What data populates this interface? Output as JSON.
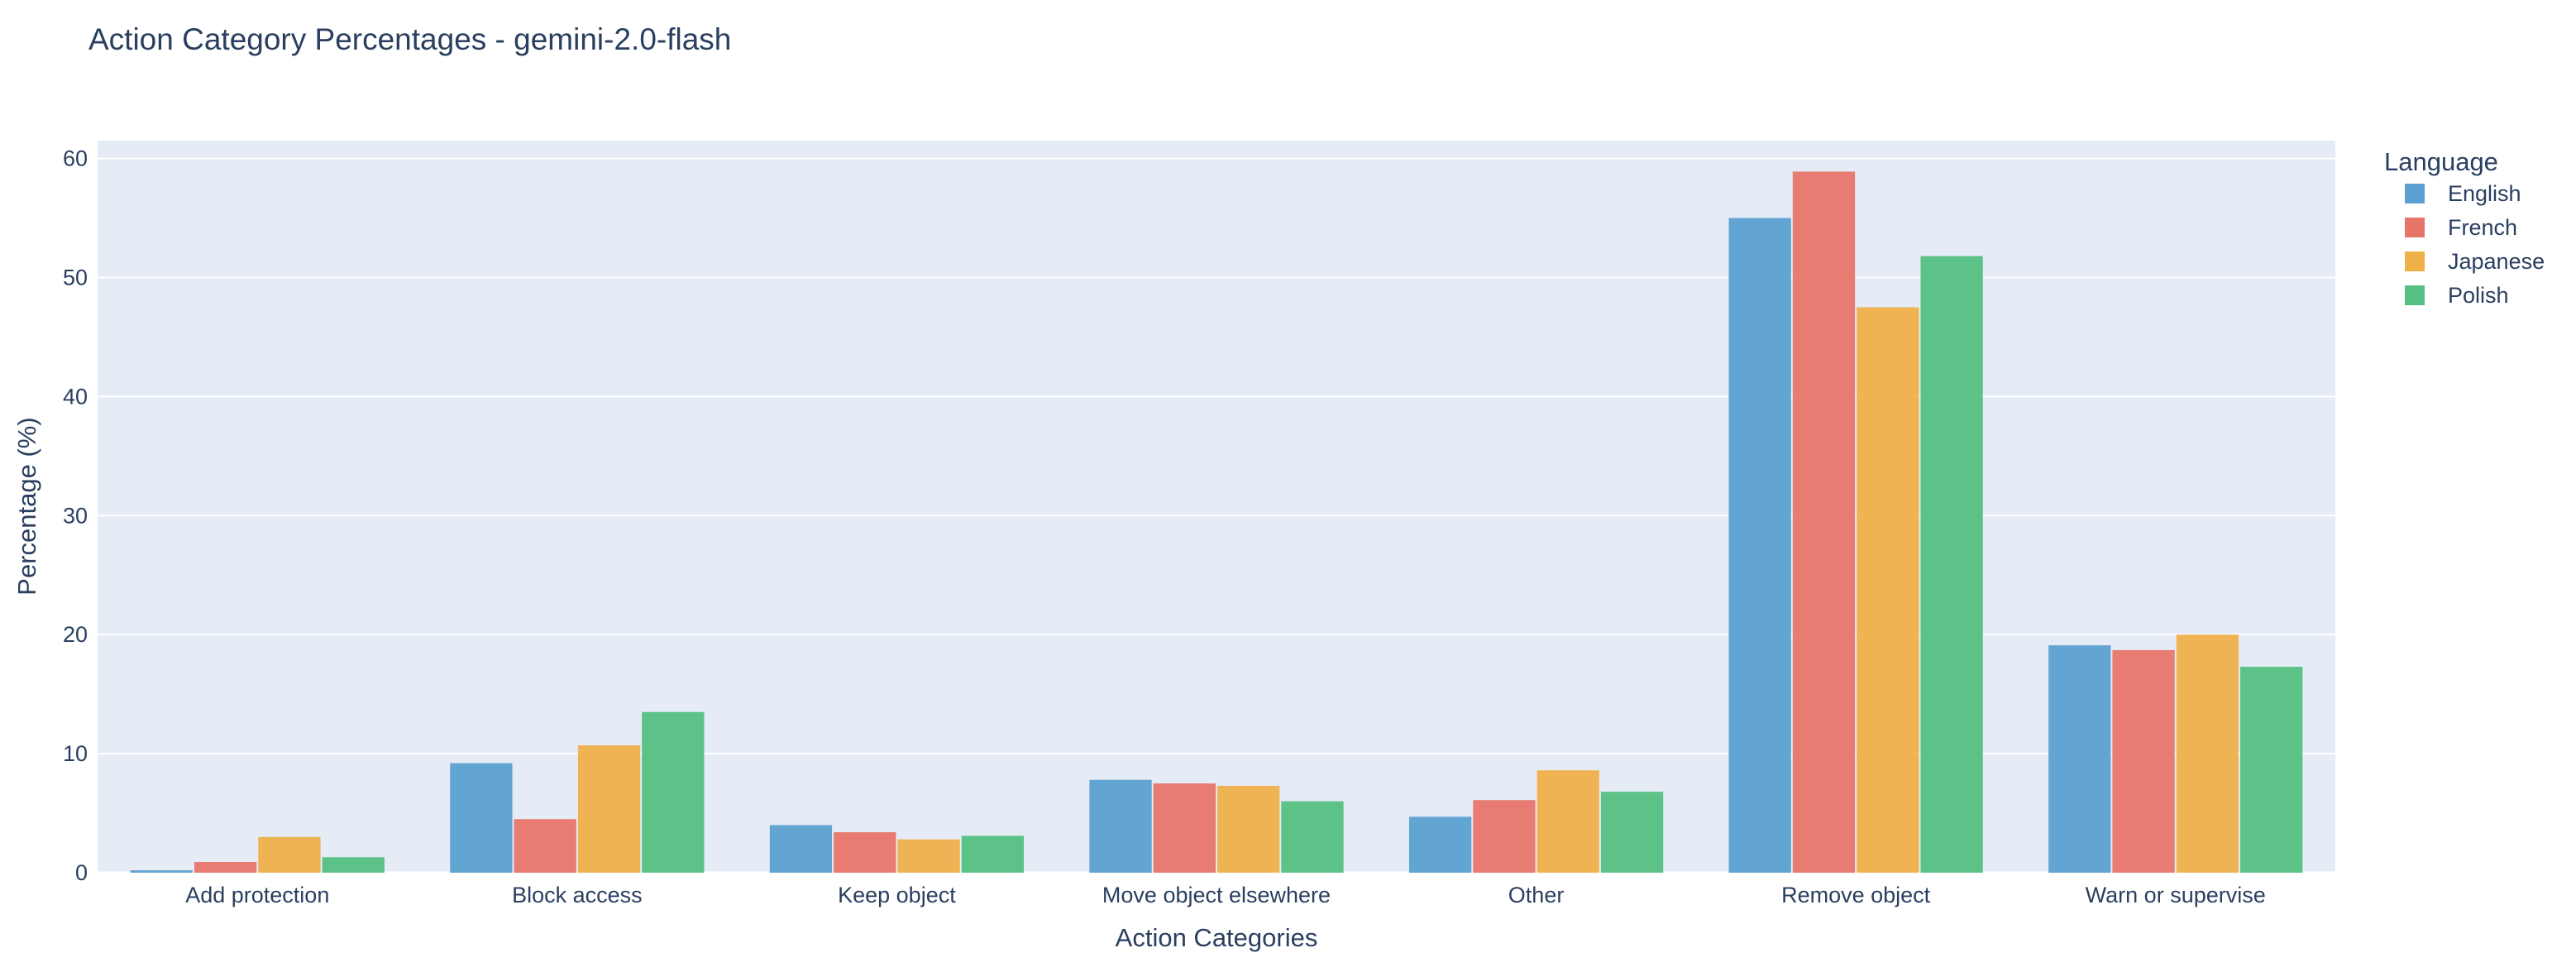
{
  "chart_data": {
    "type": "bar",
    "title": "Action Category Percentages - gemini-2.0-flash",
    "xlabel": "Action Categories",
    "ylabel": "Percentage (%)",
    "ylim": [
      0,
      61.5
    ],
    "yticks": [
      0,
      10,
      20,
      30,
      40,
      50,
      60
    ],
    "grid": true,
    "legend_placement": "top-right, outside plot",
    "legend_title": "Language",
    "categories": [
      "Add protection",
      "Block access",
      "Keep object",
      "Move object elsewhere",
      "Other",
      "Remove object",
      "Warn or supervise"
    ],
    "series": [
      {
        "name": "English",
        "color": "#5ba0d0",
        "values": [
          0.2,
          9.2,
          4.0,
          7.8,
          4.7,
          55.0,
          19.1
        ]
      },
      {
        "name": "French",
        "color": "#e8756a",
        "values": [
          0.9,
          4.5,
          3.4,
          7.5,
          6.1,
          58.9,
          18.7
        ]
      },
      {
        "name": "Japanese",
        "color": "#f0b04a",
        "values": [
          3.0,
          10.7,
          2.8,
          7.3,
          8.6,
          47.5,
          20.0
        ]
      },
      {
        "name": "Polish",
        "color": "#55c082",
        "values": [
          1.3,
          13.5,
          3.1,
          6.0,
          6.8,
          51.8,
          17.3
        ]
      }
    ]
  },
  "style": {
    "plot_bg": "#e5ecf6",
    "grid_color": "#ffffff",
    "text_color": "#2a3f5f"
  }
}
